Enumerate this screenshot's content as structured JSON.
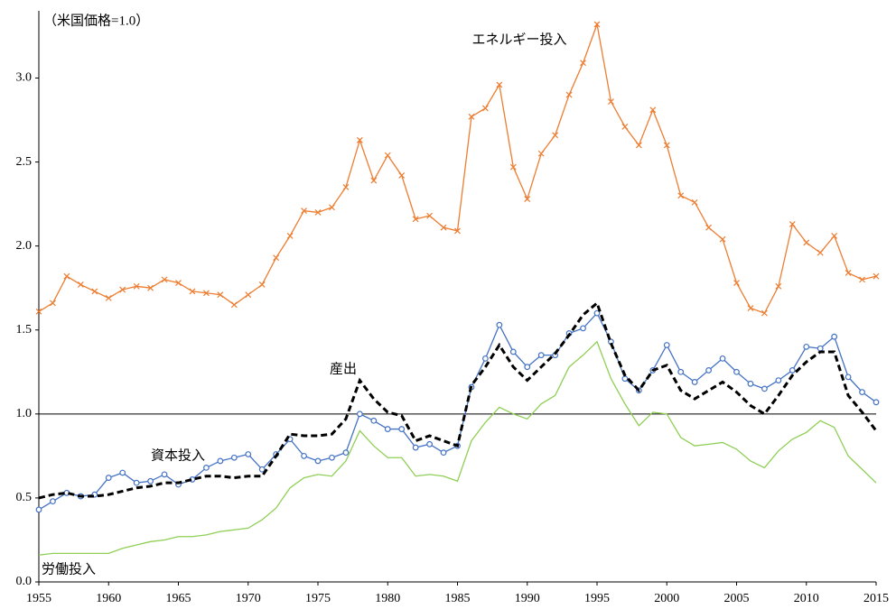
{
  "chart_data": {
    "type": "line",
    "annotation": "（米国価格=1.0）",
    "x": [
      1955,
      1956,
      1957,
      1958,
      1959,
      1960,
      1961,
      1962,
      1963,
      1964,
      1965,
      1966,
      1967,
      1968,
      1969,
      1970,
      1971,
      1972,
      1973,
      1974,
      1975,
      1976,
      1977,
      1978,
      1979,
      1980,
      1981,
      1982,
      1983,
      1984,
      1985,
      1986,
      1987,
      1988,
      1989,
      1990,
      1991,
      1992,
      1993,
      1994,
      1995,
      1996,
      1997,
      1998,
      1999,
      2000,
      2001,
      2002,
      2003,
      2004,
      2005,
      2006,
      2007,
      2008,
      2009,
      2010,
      2011,
      2012,
      2013,
      2014,
      2015
    ],
    "series": [
      {
        "name": "エネルギー投入",
        "color": "#ed7d31",
        "marker": "x",
        "dash": false,
        "values": [
          1.61,
          1.66,
          1.82,
          1.77,
          1.73,
          1.69,
          1.74,
          1.76,
          1.75,
          1.8,
          1.78,
          1.73,
          1.72,
          1.71,
          1.65,
          1.71,
          1.77,
          1.93,
          2.06,
          2.21,
          2.2,
          2.23,
          2.35,
          2.63,
          2.39,
          2.54,
          2.42,
          2.16,
          2.18,
          2.11,
          2.09,
          2.77,
          2.82,
          2.96,
          2.47,
          2.28,
          2.55,
          2.66,
          2.9,
          3.09,
          3.32,
          2.86,
          2.71,
          2.6,
          2.81,
          2.6,
          2.3,
          2.26,
          2.11,
          2.04,
          1.78,
          1.63,
          1.6,
          1.76,
          2.13,
          2.02,
          1.96,
          2.06,
          1.84,
          1.8,
          1.82
        ]
      },
      {
        "name": "資本投入",
        "color": "#4472c4",
        "marker": "circle",
        "dash": false,
        "values": [
          0.43,
          0.48,
          0.53,
          0.51,
          0.52,
          0.62,
          0.65,
          0.59,
          0.6,
          0.64,
          0.58,
          0.61,
          0.68,
          0.72,
          0.74,
          0.76,
          0.67,
          0.76,
          0.85,
          0.75,
          0.72,
          0.74,
          0.77,
          1.0,
          0.96,
          0.91,
          0.91,
          0.8,
          0.82,
          0.77,
          0.81,
          1.16,
          1.33,
          1.53,
          1.37,
          1.28,
          1.35,
          1.35,
          1.48,
          1.51,
          1.6,
          1.43,
          1.21,
          1.14,
          1.26,
          1.41,
          1.25,
          1.19,
          1.26,
          1.33,
          1.25,
          1.18,
          1.15,
          1.2,
          1.26,
          1.4,
          1.39,
          1.46,
          1.22,
          1.13,
          1.07
        ]
      },
      {
        "name": "産出",
        "color": "#000000",
        "marker": "none",
        "dash": true,
        "values": [
          0.5,
          0.52,
          0.53,
          0.51,
          0.51,
          0.52,
          0.54,
          0.56,
          0.57,
          0.59,
          0.59,
          0.61,
          0.63,
          0.63,
          0.62,
          0.63,
          0.63,
          0.75,
          0.88,
          0.87,
          0.87,
          0.88,
          0.97,
          1.2,
          1.09,
          1.01,
          0.99,
          0.84,
          0.87,
          0.84,
          0.81,
          1.17,
          1.28,
          1.41,
          1.28,
          1.2,
          1.28,
          1.36,
          1.47,
          1.59,
          1.66,
          1.42,
          1.23,
          1.14,
          1.26,
          1.29,
          1.14,
          1.09,
          1.14,
          1.19,
          1.13,
          1.05,
          1.0,
          1.11,
          1.23,
          1.31,
          1.37,
          1.37,
          1.11,
          1.01,
          0.9
        ]
      },
      {
        "name": "労働投入",
        "color": "#8fcf55",
        "marker": "none",
        "dash": false,
        "values": [
          0.16,
          0.17,
          0.17,
          0.17,
          0.17,
          0.17,
          0.2,
          0.22,
          0.24,
          0.25,
          0.27,
          0.27,
          0.28,
          0.3,
          0.31,
          0.32,
          0.37,
          0.44,
          0.56,
          0.62,
          0.64,
          0.63,
          0.72,
          0.9,
          0.81,
          0.74,
          0.74,
          0.63,
          0.64,
          0.63,
          0.6,
          0.84,
          0.95,
          1.04,
          1.0,
          0.97,
          1.06,
          1.11,
          1.28,
          1.35,
          1.43,
          1.21,
          1.06,
          0.93,
          1.01,
          1.0,
          0.86,
          0.81,
          0.82,
          0.83,
          0.79,
          0.72,
          0.68,
          0.78,
          0.85,
          0.89,
          0.96,
          0.92,
          0.75,
          0.67,
          0.59
        ]
      }
    ],
    "xlim": [
      1955,
      2015
    ],
    "xticks": [
      1955,
      1960,
      1965,
      1970,
      1975,
      1980,
      1985,
      1990,
      1995,
      2000,
      2005,
      2010,
      2015
    ],
    "ylim": [
      0,
      3.4
    ],
    "yticks": [
      {
        "value": 0,
        "label": "0.0"
      },
      0.5,
      {
        "value": 1,
        "label": "1.0"
      },
      1.5,
      {
        "value": 2,
        "label": "2.0"
      },
      2.5,
      {
        "value": 3,
        "label": "3.0"
      }
    ],
    "ref_line": 1,
    "grid": false
  }
}
